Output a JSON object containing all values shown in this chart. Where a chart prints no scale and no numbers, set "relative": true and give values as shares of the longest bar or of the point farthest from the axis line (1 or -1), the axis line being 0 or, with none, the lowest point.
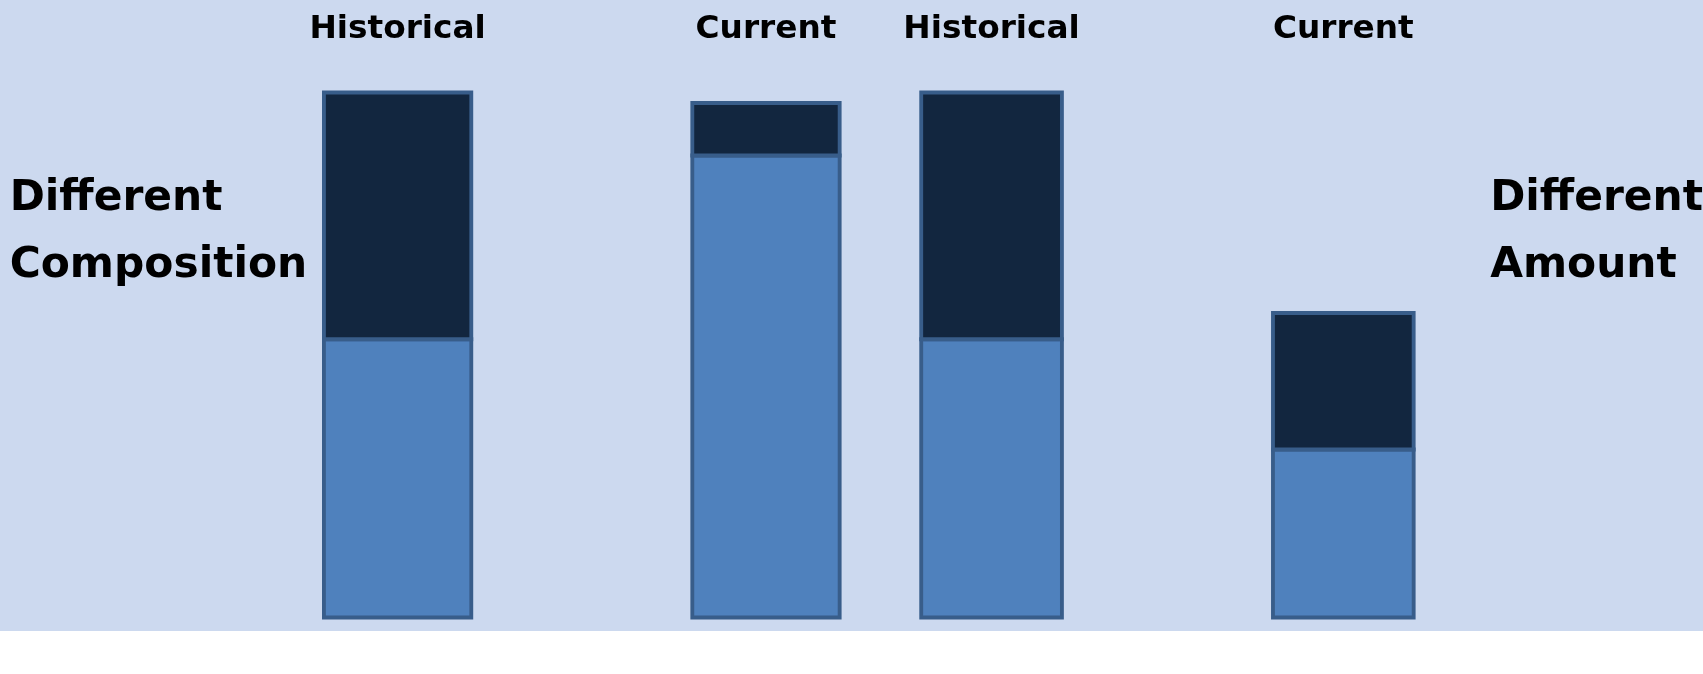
{
  "chart_data": [
    {
      "type": "bar",
      "stacked": true,
      "relative": true,
      "categories": [
        "Historical",
        "Current"
      ],
      "annotations": [
        "Different Composition"
      ],
      "series": [
        {
          "color": "#4f81bd",
          "values": [
            0.53,
            0.88
          ]
        },
        {
          "color": "#12263f",
          "values": [
            0.47,
            0.1
          ]
        }
      ]
    },
    {
      "type": "bar",
      "stacked": true,
      "relative": true,
      "categories": [
        "Historical",
        "Current"
      ],
      "annotations": [
        "Different Amount"
      ],
      "series": [
        {
          "color": "#4f81bd",
          "values": [
            0.53,
            0.32
          ]
        },
        {
          "color": "#12263f",
          "values": [
            0.47,
            0.26
          ]
        }
      ]
    }
  ]
}
